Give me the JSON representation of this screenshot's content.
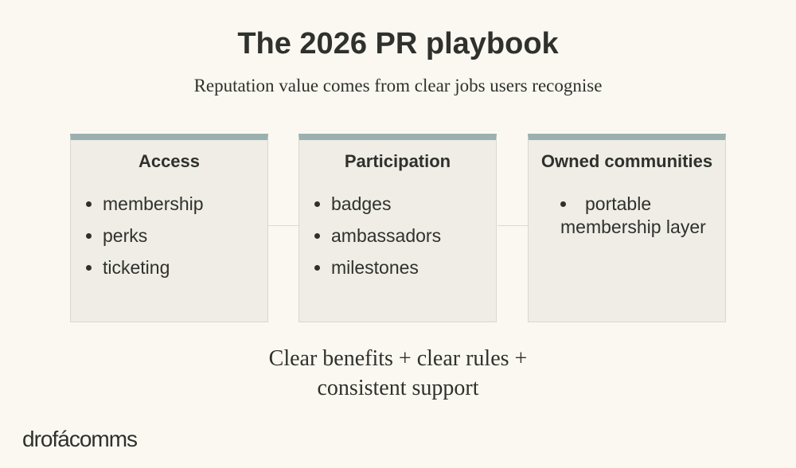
{
  "header": {
    "title": "The 2026 PR playbook",
    "subtitle": "Reputation value comes from clear jobs users recognise"
  },
  "cards": [
    {
      "title": "Access",
      "items": [
        "membership",
        "perks",
        "ticketing"
      ]
    },
    {
      "title": "Participation",
      "items": [
        "badges",
        "ambassadors",
        "milestones"
      ]
    },
    {
      "title": "Owned communities",
      "items": [
        "portable membership layer"
      ]
    }
  ],
  "footer": {
    "text": "Clear benefits + clear rules + consistent support"
  },
  "brand": {
    "logo": "drofácomms"
  }
}
